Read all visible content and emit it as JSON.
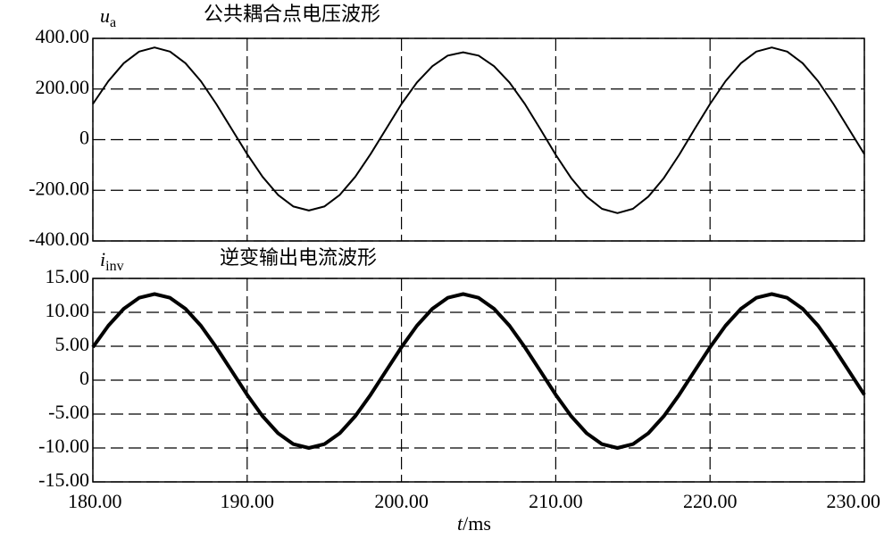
{
  "chart_data": [
    {
      "type": "line",
      "title": "公共耦合点电压波形",
      "ylabel": "u",
      "ylabel_sub": "a",
      "x": [
        180,
        181,
        182,
        183,
        184,
        185,
        186,
        187,
        188,
        189,
        190,
        191,
        192,
        193,
        194,
        195,
        196,
        197,
        198,
        199,
        200,
        201,
        202,
        203,
        204,
        205,
        206,
        207,
        208,
        209,
        210,
        211,
        212,
        213,
        214,
        215,
        216,
        217,
        218,
        219,
        220,
        221,
        222,
        223,
        224,
        225,
        226,
        227,
        228,
        229,
        230
      ],
      "series": [
        {
          "name": "u_a",
          "color": "#000000",
          "values": [
            141,
            231,
            302,
            348,
            364,
            348,
            302,
            231,
            141,
            42,
            -57,
            -147,
            -218,
            -264,
            -280,
            -264,
            -218,
            -147,
            -57,
            42,
            141,
            226,
            290,
            332,
            345,
            332,
            290,
            226,
            141,
            42,
            -60,
            -152,
            -225,
            -273,
            -290,
            -273,
            -225,
            -152,
            -60,
            42,
            141,
            231,
            302,
            348,
            364,
            348,
            302,
            231,
            141,
            42,
            -57
          ]
        }
      ],
      "xlim": [
        180,
        230
      ],
      "xticks": [
        180,
        190,
        200,
        210,
        220,
        230
      ],
      "show_xtick_labels": false,
      "ylim": [
        -400,
        400
      ],
      "yticks": [
        {
          "value": 400,
          "label": "400.00"
        },
        {
          "value": 200,
          "label": "200.00"
        },
        0,
        {
          "value": -200,
          "label": "-200.00"
        },
        {
          "value": -400,
          "label": "-400.00"
        }
      ],
      "grid": true
    },
    {
      "type": "line",
      "title": "逆变输出电流波形",
      "ylabel": "i",
      "ylabel_sub": "inv",
      "xlabel": "t",
      "xlabel_unit": "/ms",
      "x": [
        180,
        181,
        182,
        183,
        184,
        185,
        186,
        187,
        188,
        189,
        190,
        191,
        192,
        193,
        194,
        195,
        196,
        197,
        198,
        199,
        200,
        201,
        202,
        203,
        204,
        205,
        206,
        207,
        208,
        209,
        210,
        211,
        212,
        213,
        214,
        215,
        216,
        217,
        218,
        219,
        220,
        221,
        222,
        223,
        224,
        225,
        226,
        227,
        228,
        229,
        230
      ],
      "series": [
        {
          "name": "i_inv",
          "color": "#000000",
          "values": [
            4.86,
            8.02,
            10.53,
            12.14,
            12.7,
            12.14,
            10.53,
            8.02,
            4.86,
            1.35,
            -2.16,
            -5.32,
            -7.83,
            -9.44,
            -10,
            -9.44,
            -7.83,
            -5.32,
            -2.16,
            1.35,
            4.86,
            8.02,
            10.53,
            12.14,
            12.7,
            12.14,
            10.53,
            8.02,
            4.86,
            1.35,
            -2.16,
            -5.32,
            -7.83,
            -9.44,
            -10,
            -9.44,
            -7.83,
            -5.32,
            -2.16,
            1.35,
            4.86,
            8.02,
            10.53,
            12.14,
            12.7,
            12.14,
            10.53,
            8.02,
            4.86,
            1.35,
            -2.16
          ]
        }
      ],
      "xlim": [
        180,
        230
      ],
      "xticks": [
        {
          "value": 180,
          "label": "180.00"
        },
        {
          "value": 190,
          "label": "190.00"
        },
        {
          "value": 200,
          "label": "200.00"
        },
        {
          "value": 210,
          "label": "210.00"
        },
        {
          "value": 220,
          "label": "220.00"
        },
        {
          "value": 230,
          "label": "230.00"
        }
      ],
      "show_xtick_labels": true,
      "ylim": [
        -15,
        15
      ],
      "yticks": [
        {
          "value": 15,
          "label": "15.00"
        },
        {
          "value": 10,
          "label": "10.00"
        },
        {
          "value": 5,
          "label": "5.00"
        },
        0,
        {
          "value": -5,
          "label": "-5.00"
        },
        {
          "value": -10,
          "label": "-10.00"
        },
        {
          "value": -15,
          "label": "-15.00"
        }
      ],
      "grid": true
    }
  ]
}
